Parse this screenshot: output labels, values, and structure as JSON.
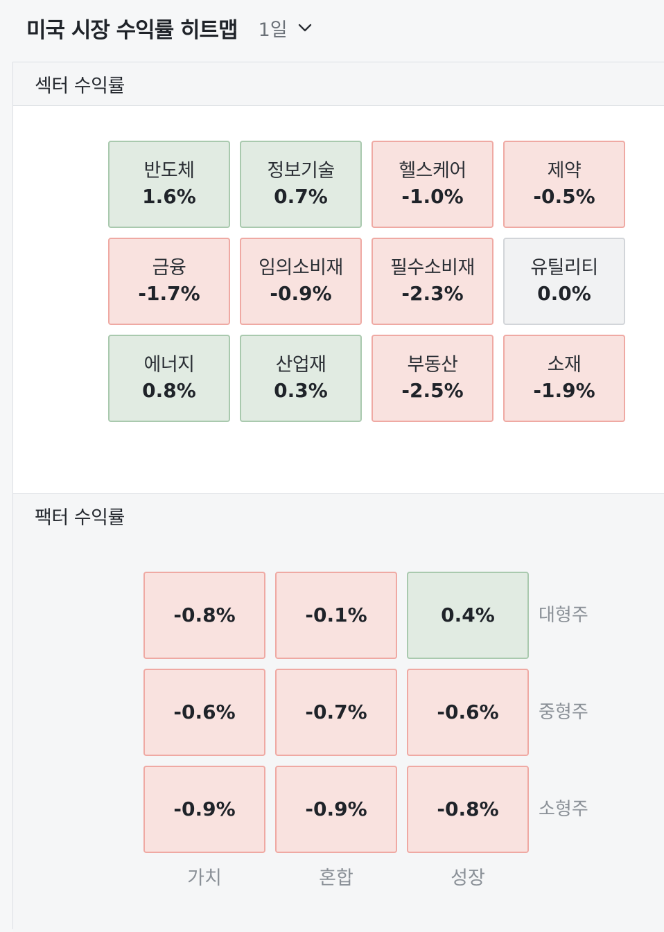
{
  "header": {
    "title": "미국 시장 수익률 히트맵",
    "period": "1일",
    "period_icon": "chevron-down-icon"
  },
  "sector_section": {
    "title": "섹터 수익률",
    "tiles": [
      {
        "name": "반도체",
        "value": "1.6%"
      },
      {
        "name": "정보기술",
        "value": "0.7%"
      },
      {
        "name": "헬스케어",
        "value": "-1.0%"
      },
      {
        "name": "제약",
        "value": "-0.5%"
      },
      {
        "name": "금융",
        "value": "-1.7%"
      },
      {
        "name": "임의소비재",
        "value": "-0.9%"
      },
      {
        "name": "필수소비재",
        "value": "-2.3%"
      },
      {
        "name": "유틸리티",
        "value": "0.0%"
      },
      {
        "name": "에너지",
        "value": "0.8%"
      },
      {
        "name": "산업재",
        "value": "0.3%"
      },
      {
        "name": "부동산",
        "value": "-2.5%"
      },
      {
        "name": "소재",
        "value": "-1.9%"
      }
    ]
  },
  "factor_section": {
    "title": "팩터 수익률",
    "row_labels": [
      "대형주",
      "중형주",
      "소형주"
    ],
    "col_labels": [
      "가치",
      "혼합",
      "성장"
    ],
    "cells": [
      [
        "-0.8%",
        "-0.1%",
        "0.4%"
      ],
      [
        "-0.6%",
        "-0.7%",
        "-0.6%"
      ],
      [
        "-0.9%",
        "-0.9%",
        "-0.8%"
      ]
    ]
  },
  "colors": {
    "positive_bg": "#e1ebe2",
    "negative_bg": "#f9e2df",
    "neutral_bg": "#f1f2f3"
  }
}
